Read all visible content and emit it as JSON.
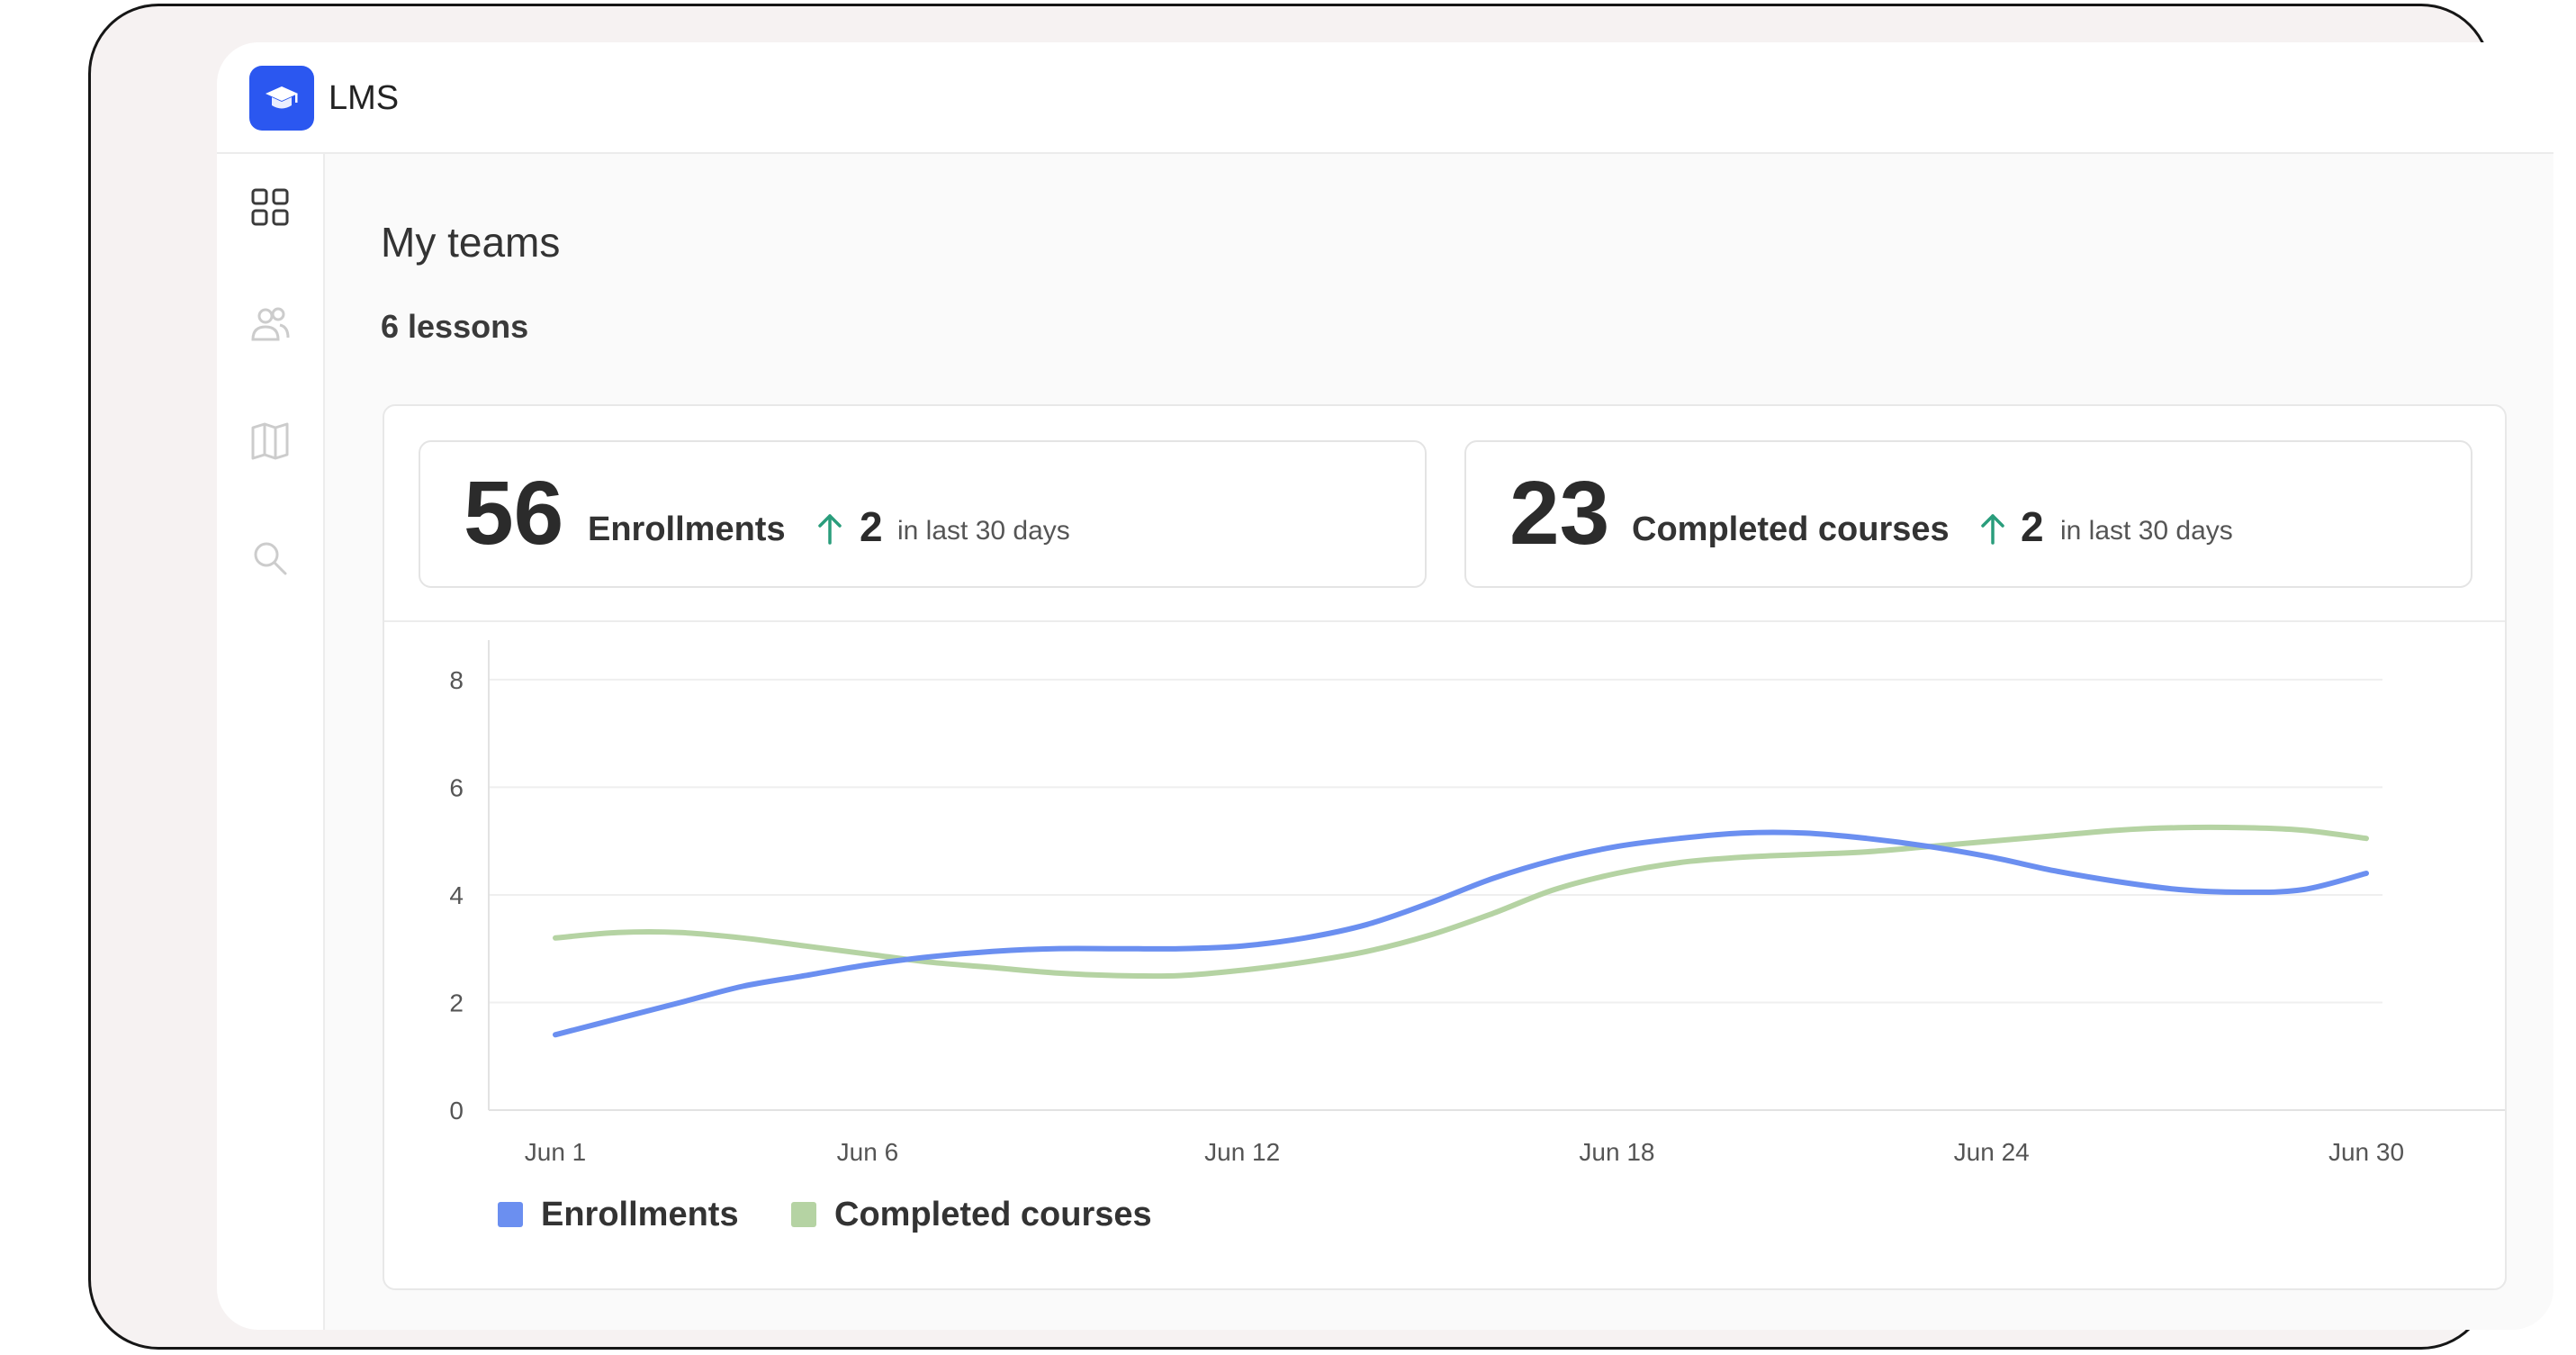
{
  "app": {
    "title": "LMS",
    "logo_icon": "graduation-cap-icon",
    "accent": "#2b57f0"
  },
  "sidebar": {
    "items": [
      {
        "icon": "grid-icon",
        "active": true
      },
      {
        "icon": "users-icon",
        "active": false
      },
      {
        "icon": "book-icon",
        "active": false
      },
      {
        "icon": "search-icon",
        "active": false
      }
    ]
  },
  "page": {
    "title": "My teams",
    "subtitle": "6 lessons"
  },
  "stats": [
    {
      "value": "56",
      "label": "Enrollments",
      "delta": "2",
      "period": "in last 30 days",
      "trend_icon": "arrow-up-icon"
    },
    {
      "value": "23",
      "label": "Completed courses",
      "delta": "2",
      "period": "in last 30 days",
      "trend_icon": "arrow-up-icon"
    }
  ],
  "colors": {
    "enrollments": "#6b8ff0",
    "completed": "#b5d3a3",
    "trend_up": "#2a9d7c"
  },
  "chart_data": {
    "type": "line",
    "x": [
      "Jun 1",
      "Jun 2",
      "Jun 3",
      "Jun 4",
      "Jun 5",
      "Jun 6",
      "Jun 7",
      "Jun 8",
      "Jun 9",
      "Jun 10",
      "Jun 11",
      "Jun 12",
      "Jun 13",
      "Jun 14",
      "Jun 15",
      "Jun 16",
      "Jun 17",
      "Jun 18",
      "Jun 19",
      "Jun 20",
      "Jun 21",
      "Jun 22",
      "Jun 23",
      "Jun 24",
      "Jun 25",
      "Jun 26",
      "Jun 27",
      "Jun 28",
      "Jun 29",
      "Jun 30"
    ],
    "x_tick_labels": [
      "Jun 1",
      "Jun 6",
      "Jun 12",
      "Jun 18",
      "Jun 24",
      "Jun 30"
    ],
    "x_tick_positions": [
      1,
      6,
      12,
      18,
      24,
      30
    ],
    "series": [
      {
        "name": "Enrollments",
        "color": "#6b8ff0",
        "values": [
          1.4,
          1.7,
          2.0,
          2.3,
          2.5,
          2.7,
          2.85,
          2.95,
          3.0,
          3.0,
          3.0,
          3.05,
          3.2,
          3.45,
          3.85,
          4.3,
          4.65,
          4.9,
          5.05,
          5.15,
          5.15,
          5.05,
          4.9,
          4.7,
          4.45,
          4.25,
          4.1,
          4.05,
          4.1,
          4.4
        ]
      },
      {
        "name": "Completed courses",
        "color": "#b5d3a3",
        "values": [
          3.2,
          3.3,
          3.3,
          3.2,
          3.05,
          2.9,
          2.75,
          2.65,
          2.55,
          2.5,
          2.5,
          2.6,
          2.75,
          2.95,
          3.25,
          3.65,
          4.1,
          4.4,
          4.6,
          4.7,
          4.75,
          4.8,
          4.9,
          5.0,
          5.1,
          5.2,
          5.25,
          5.25,
          5.2,
          5.05
        ]
      }
    ],
    "y_ticks": [
      0,
      2,
      4,
      6,
      8
    ],
    "ylim": [
      0,
      8.4
    ],
    "grid": true,
    "legend": "bottom-left",
    "title": "",
    "xlabel": "",
    "ylabel": ""
  }
}
